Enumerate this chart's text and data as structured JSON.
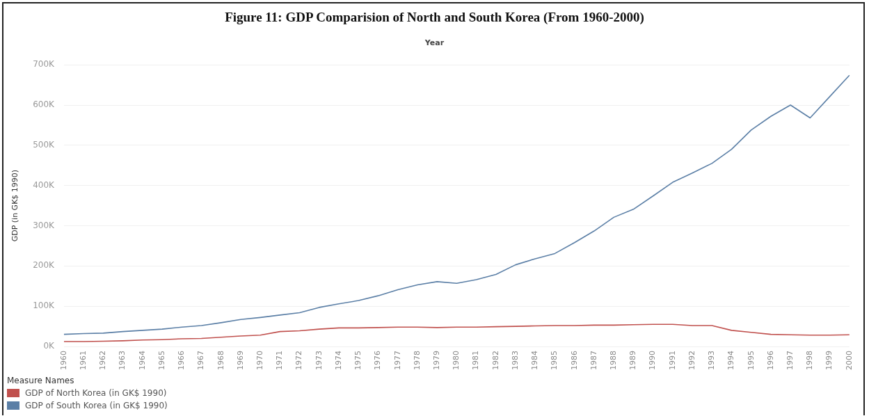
{
  "chart_data": {
    "type": "line",
    "title": "Figure 11: GDP Comparision of North and South Korea (From 1960-2000)",
    "xlabel": "Year",
    "ylabel": "GDP (in GK$ 1990)",
    "legend_title": "Measure Names",
    "categories": [
      "1960",
      "1961",
      "1962",
      "1963",
      "1964",
      "1965",
      "1966",
      "1967",
      "1968",
      "1969",
      "1970",
      "1971",
      "1972",
      "1973",
      "1974",
      "1975",
      "1976",
      "1977",
      "1978",
      "1979",
      "1980",
      "1981",
      "1982",
      "1983",
      "1984",
      "1985",
      "1986",
      "1987",
      "1988",
      "1989",
      "1990",
      "1991",
      "1992",
      "1993",
      "1994",
      "1995",
      "1996",
      "1997",
      "1998",
      "1999",
      "2000"
    ],
    "series": [
      {
        "name": "GDP of North Korea (in GK$ 1990)",
        "color": "#c0504d",
        "values": [
          12000,
          12000,
          13000,
          14000,
          16000,
          17000,
          19000,
          20000,
          23000,
          26000,
          28000,
          37000,
          39000,
          43000,
          46000,
          46000,
          47000,
          48000,
          48000,
          47000,
          48000,
          48000,
          49000,
          50000,
          51000,
          52000,
          52000,
          53000,
          53000,
          54000,
          55000,
          55000,
          52000,
          52000,
          40000,
          35000,
          30000,
          29000,
          28000,
          28000,
          29000
        ]
      },
      {
        "name": "GDP of South Korea (in GK$ 1990)",
        "color": "#5b7fa6",
        "values": [
          30000,
          32000,
          33000,
          37000,
          40000,
          43000,
          48000,
          52000,
          59000,
          67000,
          72000,
          78000,
          84000,
          97000,
          106000,
          114000,
          126000,
          141000,
          153000,
          161000,
          157000,
          166000,
          179000,
          203000,
          218000,
          231000,
          258000,
          287000,
          321000,
          341000,
          374000,
          408000,
          431000,
          455000,
          490000,
          538000,
          572000,
          600000,
          568000,
          621000,
          674000
        ]
      }
    ],
    "ylim": [
      0,
      700000
    ],
    "yticks": [
      {
        "value": 0,
        "label": "0K"
      },
      {
        "value": 100000,
        "label": "100K"
      },
      {
        "value": 200000,
        "label": "200K"
      },
      {
        "value": 300000,
        "label": "300K"
      },
      {
        "value": 400000,
        "label": "400K"
      },
      {
        "value": 500000,
        "label": "500K"
      },
      {
        "value": 600000,
        "label": "600K"
      },
      {
        "value": 700000,
        "label": "700K"
      }
    ],
    "grid": "y",
    "legend": "bottom left",
    "marker": "none",
    "line_style": "solid"
  }
}
